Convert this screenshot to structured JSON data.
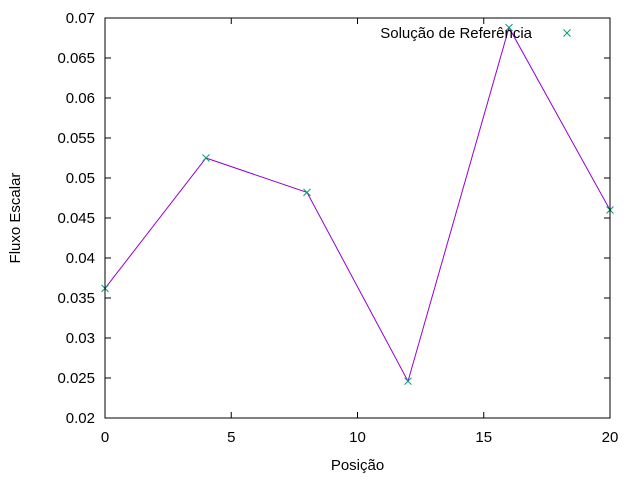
{
  "chart_data": {
    "type": "line",
    "title": "",
    "xlabel": "Posição",
    "ylabel": "Fluxo Escalar",
    "xlim": [
      0,
      20
    ],
    "ylim": [
      0.02,
      0.07
    ],
    "x_ticks": [
      "0",
      "5",
      "10",
      "15",
      "20"
    ],
    "x_tick_values": [
      0,
      5,
      10,
      15,
      20
    ],
    "y_ticks": [
      "0.02",
      "0.025",
      "0.03",
      "0.035",
      "0.04",
      "0.045",
      "0.05",
      "0.055",
      "0.06",
      "0.065",
      "0.07"
    ],
    "y_tick_values": [
      0.02,
      0.025,
      0.03,
      0.035,
      0.04,
      0.045,
      0.05,
      0.055,
      0.06,
      0.065,
      0.07
    ],
    "grid": false,
    "legend_position": "top-right",
    "series": [
      {
        "name": "",
        "style": "line",
        "color": "#9400d3",
        "x": [
          0,
          4,
          8,
          12,
          16,
          20
        ],
        "y": [
          0.0362,
          0.0525,
          0.0482,
          0.0246,
          0.0688,
          0.046
        ]
      },
      {
        "name": "Solução de Referência",
        "style": "points",
        "marker": "x",
        "color": "#009e73",
        "x": [
          0,
          4,
          8,
          12,
          16,
          20
        ],
        "y": [
          0.0362,
          0.0525,
          0.0482,
          0.0246,
          0.0688,
          0.046
        ]
      }
    ]
  }
}
